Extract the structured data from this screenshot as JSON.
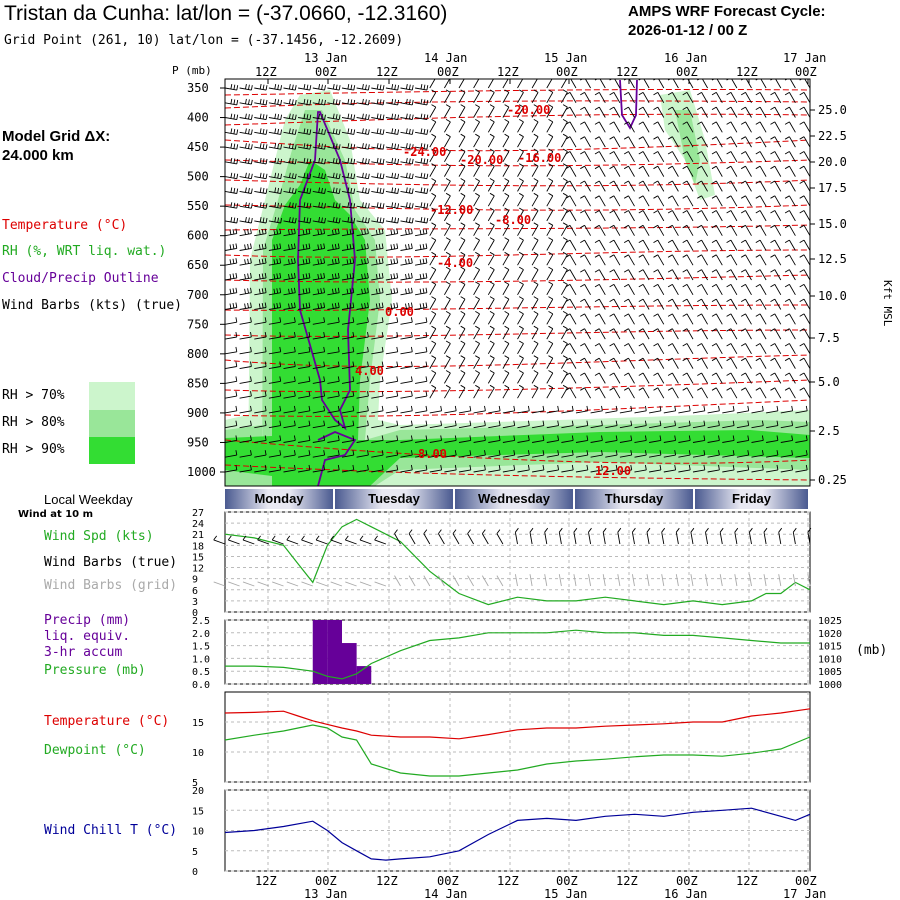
{
  "header": {
    "title": "Tristan da Cunha:  lat/lon = (-37.0660, -12.3160)",
    "grid_point": "Grid Point (261, 10) lat/lon = (-37.1456, -12.2609)",
    "cycle_label": "AMPS WRF Forecast Cycle:",
    "cycle_value": "2026-01-12 / 00  Z"
  },
  "legend": {
    "model_grid_1": "Model Grid ΔX:",
    "model_grid_2": " 24.000 km",
    "temperature": "Temperature (°C)",
    "rh": "RH (%, WRT liq. wat.)",
    "cloud": "Cloud/Precip Outline",
    "wind_barbs": "Wind Barbs (kts) (true)",
    "rh70": "RH > 70%",
    "rh80": "RH > 80%",
    "rh90": "RH > 90%",
    "local_weekday": "Local Weekday",
    "wind_at": "Wind at 10 m",
    "wind_spd": "Wind Spd (kts)",
    "wind_barbs_true": "Wind Barbs (true)",
    "wind_barbs_grid": "Wind Barbs (grid)",
    "precip1": "Precip (mm)",
    "precip2": "liq. equiv.",
    "precip3": "3-hr accum",
    "pressure": "Pressure (mb)",
    "pressure_unit": "(mb)",
    "temp2": "Temperature (°C)",
    "dewpoint": "Dewpoint (°C)",
    "windchill": "Wind Chill T (°C)",
    "p_axis": "P (mb)",
    "kft_axis": "Kft MSL"
  },
  "colors": {
    "temperature": "#dd0000",
    "rh": "#22aa22",
    "cloud": "#660099",
    "rh70": "#ccf5cc",
    "rh80": "#99e699",
    "rh90": "#33dd33",
    "windchill": "#000099",
    "grid_barbs": "#aaaaaa"
  },
  "chart_data": [
    {
      "type": "area",
      "name": "cross-section",
      "x_hours": [
        0,
        120
      ],
      "x_tick_labels": [
        "12Z",
        "00Z",
        "12Z",
        "00Z",
        "12Z",
        "00Z",
        "12Z",
        "00Z",
        "12Z",
        "00Z"
      ],
      "x_date_labels": [
        "13 Jan",
        "14 Jan",
        "15 Jan",
        "16 Jan",
        "17 Jan"
      ],
      "pressure_ticks": [
        350,
        400,
        450,
        500,
        550,
        600,
        650,
        700,
        750,
        800,
        850,
        900,
        950,
        1000
      ],
      "height_ticks_kft": [
        "25.0",
        "22.5",
        "20.0",
        "17.5",
        "15.0",
        "12.5",
        "10.0",
        "7.5",
        "5.0",
        "2.5",
        "0.25"
      ],
      "temperature_contour_labels": [
        "-20.00",
        "-24.00",
        "-20.00",
        "-16.00",
        "-12.00",
        "-8.00",
        "-4.00",
        "0.00",
        "4.00",
        "8.00",
        "12.00"
      ]
    },
    {
      "type": "bar",
      "name": "weekday",
      "categories": [
        "Monday",
        "Tuesday",
        "Wednesday",
        "Thursday",
        "Friday"
      ]
    },
    {
      "type": "line",
      "name": "wind-speed",
      "ylim": [
        0,
        27
      ],
      "y_ticks": [
        0,
        3,
        6,
        9,
        12,
        15,
        18,
        21,
        24,
        27
      ],
      "x": [
        0,
        6,
        12,
        15,
        18,
        21,
        24,
        27,
        30,
        33,
        36,
        39,
        42,
        45,
        48,
        54,
        60,
        66,
        72,
        78,
        84,
        90,
        96,
        102,
        108,
        111,
        114,
        117,
        120
      ],
      "values": [
        21,
        20,
        18,
        13,
        8,
        18,
        23,
        25,
        23,
        21,
        19,
        15,
        11,
        8,
        5,
        2,
        4,
        3,
        3,
        4,
        3,
        2,
        3,
        2,
        3,
        5,
        5,
        8,
        6
      ]
    },
    {
      "type": "bar",
      "name": "precip",
      "ylim": [
        0,
        2.5
      ],
      "y_ticks": [
        "0.0",
        "0.5",
        "1.0",
        "1.5",
        "2.0",
        "2.5"
      ],
      "x_start": [
        18,
        21,
        24,
        27
      ],
      "values": [
        2.5,
        2.5,
        1.6,
        0.7
      ]
    },
    {
      "type": "line",
      "name": "pressure",
      "ylim": [
        1000,
        1025
      ],
      "y_ticks": [
        "1000",
        "1005",
        "1010",
        "1015",
        "1020",
        "1025"
      ],
      "x": [
        0,
        6,
        12,
        18,
        21,
        24,
        27,
        30,
        36,
        42,
        48,
        54,
        60,
        66,
        72,
        78,
        84,
        90,
        96,
        102,
        108,
        114,
        120
      ],
      "values": [
        1007,
        1007,
        1006.5,
        1005,
        1003,
        1002,
        1004,
        1008,
        1013,
        1017,
        1018,
        1020,
        1020,
        1020,
        1021,
        1020,
        1020,
        1019,
        1019,
        1018,
        1017,
        1016,
        1016
      ]
    },
    {
      "type": "line",
      "name": "temperature-dewpoint",
      "ylim": [
        5,
        20
      ],
      "y_ticks": [
        "5",
        "10",
        "15"
      ],
      "series": [
        {
          "name": "Temperature (°C)",
          "x": [
            0,
            6,
            12,
            15,
            18,
            21,
            24,
            27,
            30,
            36,
            42,
            48,
            54,
            60,
            66,
            72,
            78,
            84,
            90,
            96,
            102,
            108,
            114,
            120
          ],
          "values": [
            16.5,
            16.6,
            16.8,
            16,
            15.2,
            14.6,
            14,
            13.5,
            12.8,
            12.5,
            12.5,
            12.2,
            12.9,
            13.7,
            14,
            14,
            14.3,
            14.5,
            14.7,
            15,
            15,
            16,
            16.5,
            17.2
          ]
        },
        {
          "name": "Dewpoint (°C)",
          "x": [
            0,
            6,
            12,
            15,
            18,
            21,
            24,
            27,
            30,
            36,
            42,
            48,
            54,
            60,
            66,
            72,
            78,
            84,
            90,
            96,
            102,
            108,
            114,
            120
          ],
          "values": [
            12,
            12.8,
            13.5,
            14,
            14.5,
            14,
            12.5,
            12,
            8,
            6.5,
            6,
            6,
            6.5,
            7,
            8,
            8.5,
            8.8,
            9.2,
            9.5,
            9.5,
            9.3,
            9.8,
            10.5,
            12.5
          ]
        }
      ]
    },
    {
      "type": "line",
      "name": "wind-chill",
      "ylim": [
        0,
        20
      ],
      "y_ticks": [
        "0",
        "5",
        "10",
        "15",
        "20"
      ],
      "x": [
        0,
        6,
        12,
        18,
        21,
        24,
        27,
        30,
        33,
        36,
        42,
        48,
        54,
        60,
        66,
        72,
        78,
        84,
        90,
        96,
        102,
        108,
        114,
        117,
        120
      ],
      "values": [
        9.5,
        10,
        11,
        12.3,
        10,
        7,
        5,
        3,
        2.7,
        3,
        3.5,
        5,
        9,
        12.5,
        13,
        12.5,
        13.5,
        14,
        13.5,
        14.5,
        15,
        15.5,
        13.5,
        12.5,
        14
      ]
    }
  ]
}
